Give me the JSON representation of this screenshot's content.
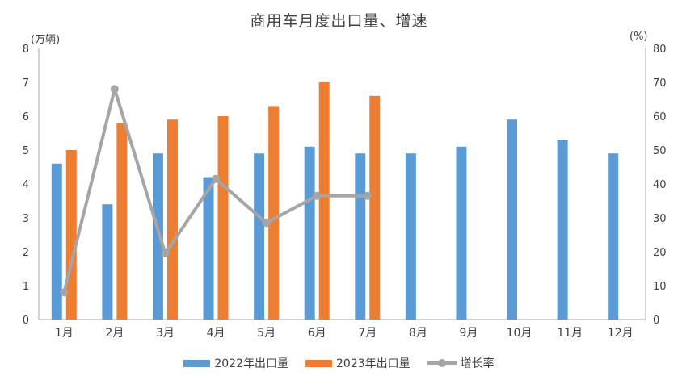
{
  "chart_data": {
    "type": "combo-bar-line",
    "title": "商用车月度出口量、增速",
    "categories": [
      "1月",
      "2月",
      "3月",
      "4月",
      "5月",
      "6月",
      "7月",
      "8月",
      "9月",
      "10月",
      "11月",
      "12月"
    ],
    "series": [
      {
        "name": "2022年出口量",
        "type": "bar",
        "axis": "left",
        "color": "#5B9BD5",
        "values": [
          4.6,
          3.4,
          4.9,
          4.2,
          4.9,
          5.1,
          4.9,
          4.9,
          5.1,
          5.9,
          5.3,
          4.9
        ]
      },
      {
        "name": "2023年出口量",
        "type": "bar",
        "axis": "left",
        "color": "#ED7D31",
        "values": [
          5.0,
          5.8,
          5.9,
          6.0,
          6.3,
          7.0,
          6.6,
          null,
          null,
          null,
          null,
          null
        ]
      },
      {
        "name": "增长率",
        "type": "line",
        "axis": "right",
        "color": "#A5A5A5",
        "values": [
          8,
          68,
          19.5,
          41.5,
          28.5,
          36.5,
          36.5,
          null,
          null,
          null,
          null,
          null
        ]
      }
    ],
    "left_axis": {
      "unit": "(万辆)",
      "min": 0,
      "max": 8,
      "step": 1,
      "ticks": [
        "0",
        "1",
        "2",
        "3",
        "4",
        "5",
        "6",
        "7",
        "8"
      ]
    },
    "right_axis": {
      "unit": "(%)",
      "min": 0,
      "max": 80,
      "step": 10,
      "ticks": [
        "0",
        "10",
        "20",
        "30",
        "40",
        "50",
        "60",
        "70",
        "80"
      ]
    },
    "grid": false,
    "legend_position": "bottom",
    "colors": {
      "axis_line": "#A6A6A6",
      "tick_text": "#404040",
      "background": "#FFFFFF"
    }
  }
}
